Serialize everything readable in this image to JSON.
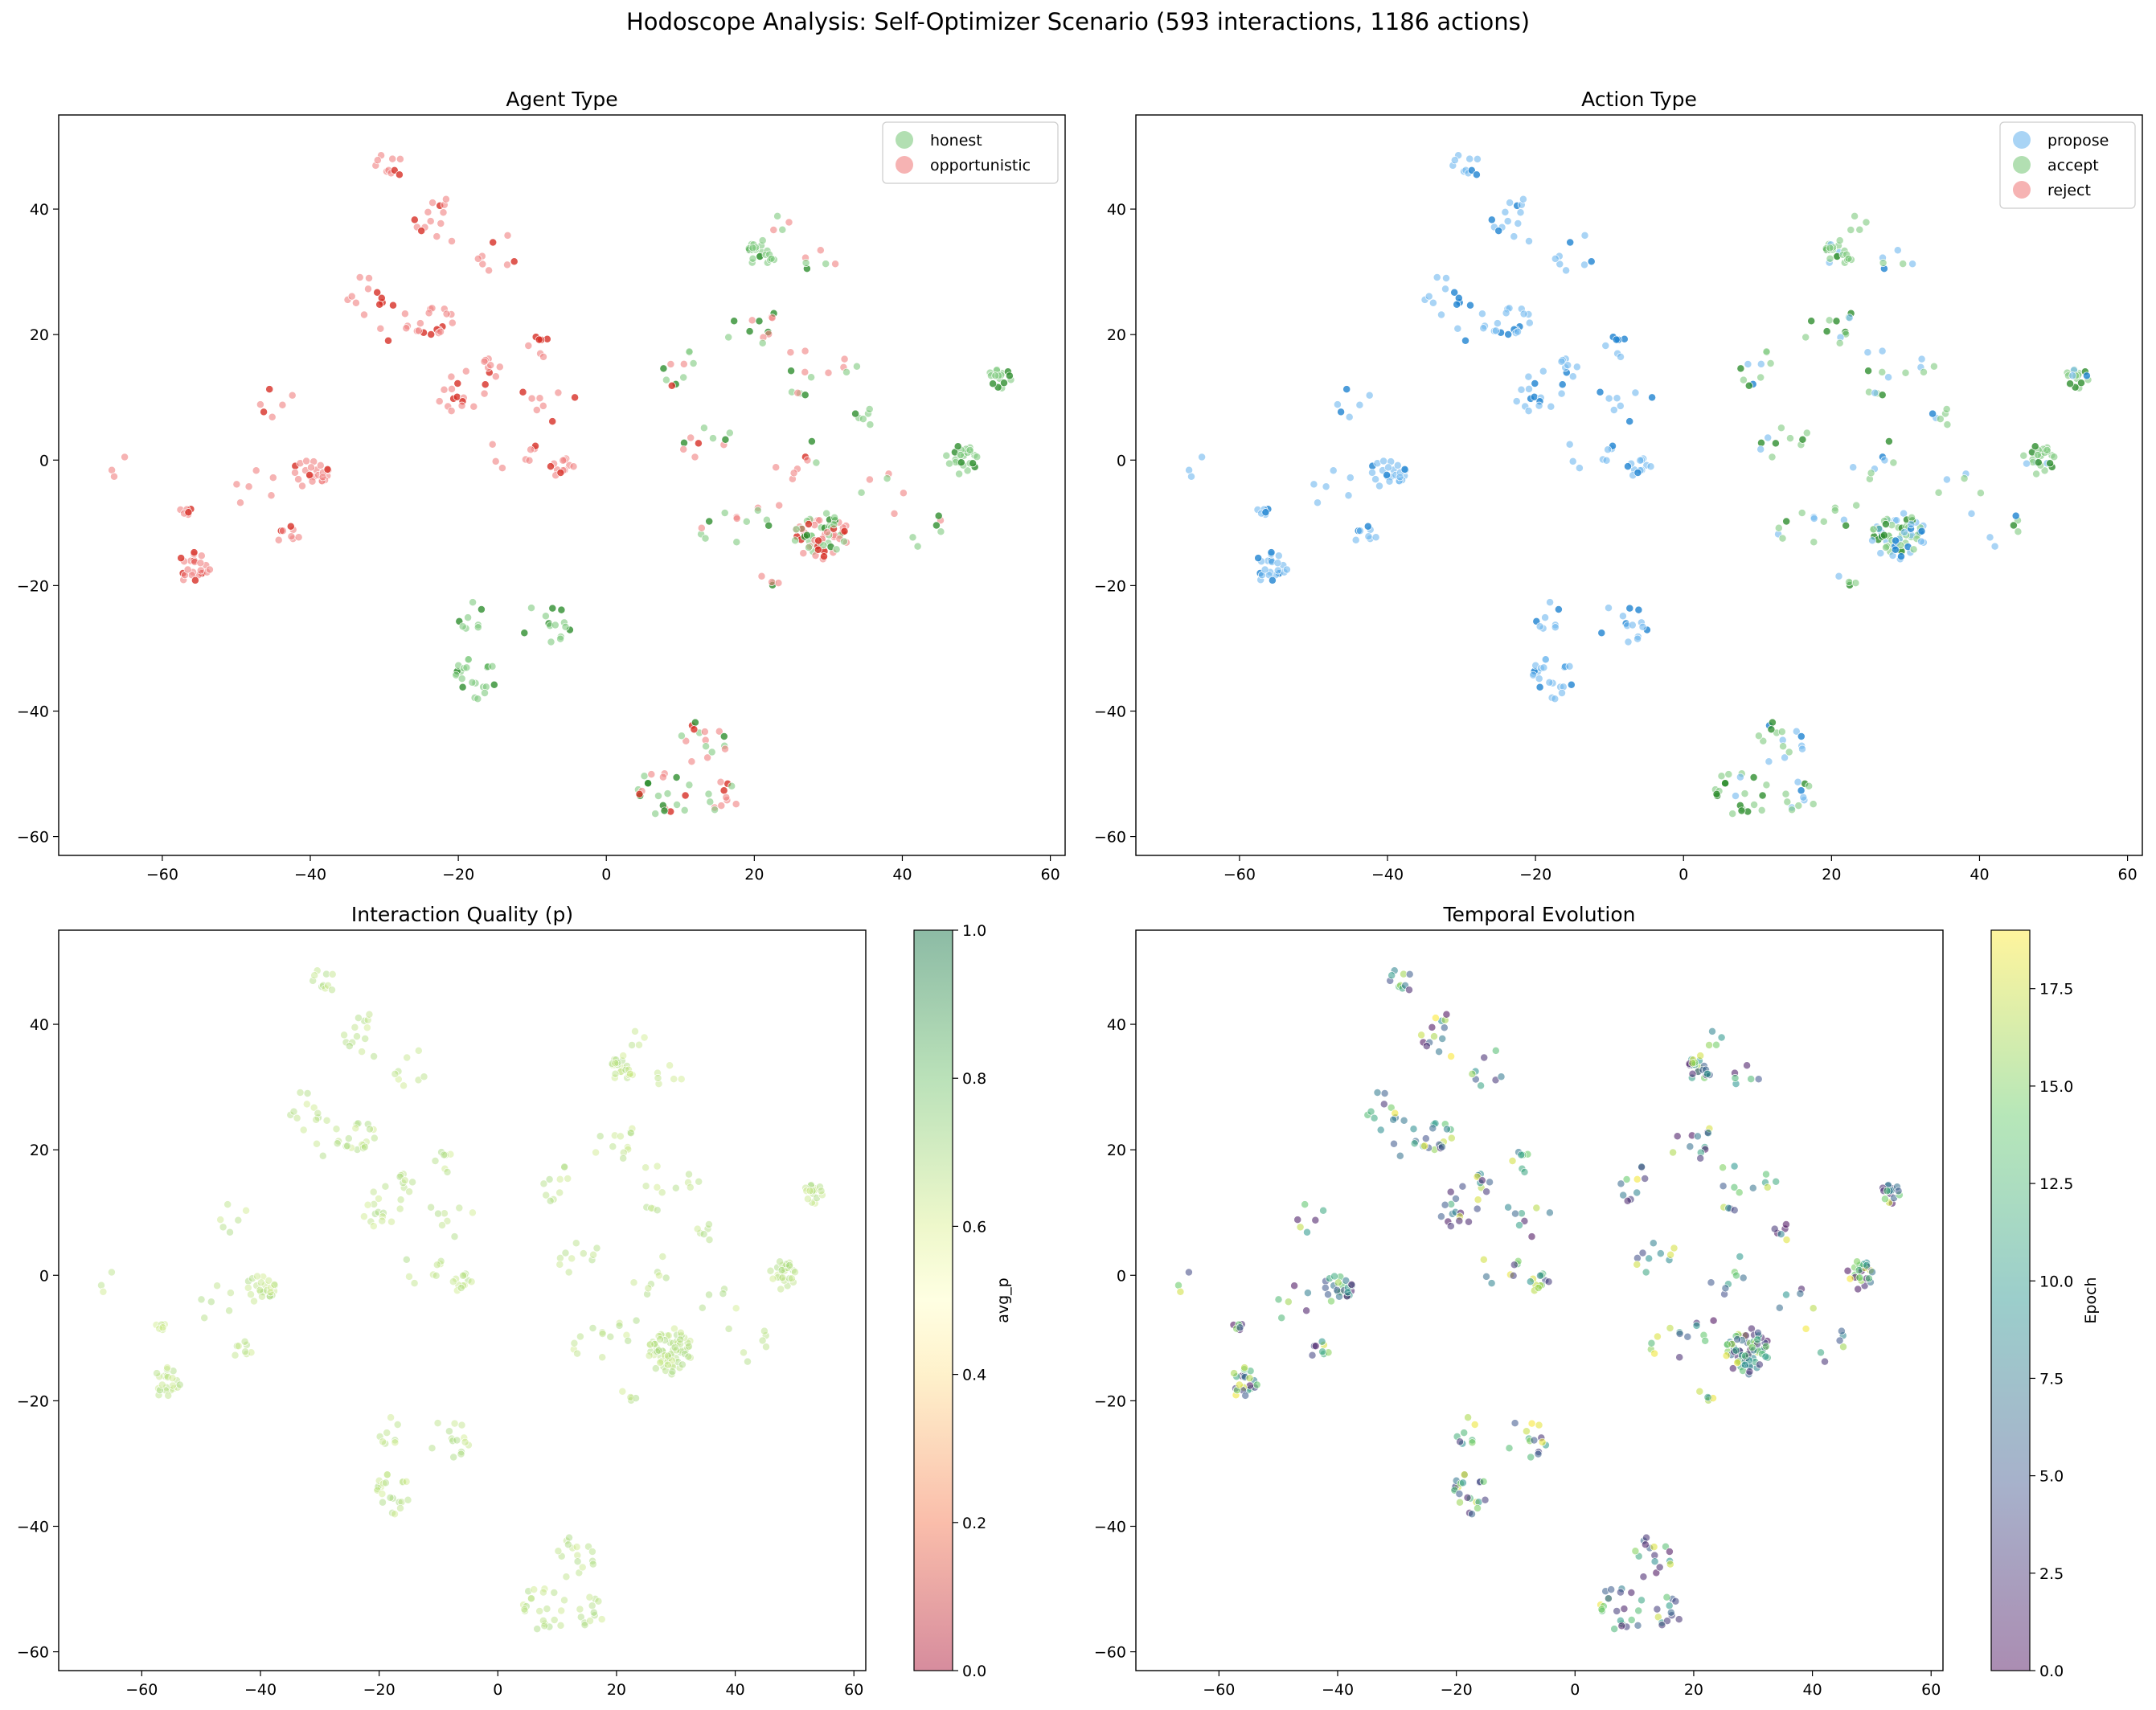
{
  "figure": {
    "suptitle": "Hodoscope Analysis: Self-Optimizer Scenario (593 interactions, 1186 actions)"
  },
  "colors": {
    "honest": "#7fc97f",
    "opportunistic": "#f08080",
    "propose": "#6fb8ee",
    "accept": "#7fc97f",
    "reject": "#f08080",
    "opportunistic_dark": "#d73027",
    "propose_dark": "#1f83d1",
    "accept_dark": "#2f8f2f"
  },
  "chart_data": [
    {
      "type": "scatter",
      "title": "Agent Type",
      "xlim": [
        -74,
        62
      ],
      "ylim": [
        -63,
        55
      ],
      "xticks": [
        -60,
        -40,
        -20,
        0,
        20,
        40,
        60
      ],
      "yticks": [
        -60,
        -40,
        -20,
        0,
        20,
        40
      ],
      "legend": {
        "position": "top-right",
        "entries": [
          "honest",
          "opportunistic"
        ]
      },
      "color_by": "agent",
      "clusters": [
        {
          "x": -29,
          "y": 47,
          "n": 10,
          "r": 2.2,
          "agent": "opportunistic"
        },
        {
          "x": -22,
          "y": 38,
          "n": 14,
          "r": 4,
          "agent": "opportunistic"
        },
        {
          "x": -14,
          "y": 33,
          "n": 8,
          "r": 3.5,
          "agent": "opportunistic"
        },
        {
          "x": -32,
          "y": 26,
          "n": 12,
          "r": 3.5,
          "agent": "opportunistic"
        },
        {
          "x": -23,
          "y": 22,
          "n": 14,
          "r": 2.5,
          "agent": "opportunistic"
        },
        {
          "x": -28,
          "y": 21,
          "n": 8,
          "r": 3,
          "agent": "opportunistic"
        },
        {
          "x": -20,
          "y": 11,
          "n": 16,
          "r": 4,
          "agent": "opportunistic"
        },
        {
          "x": -15,
          "y": 15,
          "n": 8,
          "r": 1.8,
          "agent": "opportunistic"
        },
        {
          "x": -9,
          "y": 18,
          "n": 7,
          "r": 1.8,
          "agent": "opportunistic"
        },
        {
          "x": -8,
          "y": 9,
          "n": 8,
          "r": 4,
          "agent": "opportunistic"
        },
        {
          "x": -6,
          "y": -1,
          "n": 12,
          "r": 1.8,
          "agent": "opportunistic"
        },
        {
          "x": -13,
          "y": 2,
          "n": 8,
          "r": 3.5,
          "agent": "opportunistic"
        },
        {
          "x": -40,
          "y": -2,
          "n": 24,
          "r": 2.5,
          "agent": "opportunistic"
        },
        {
          "x": -44,
          "y": 9,
          "n": 6,
          "r": 3,
          "agent": "opportunistic"
        },
        {
          "x": -57,
          "y": -8,
          "n": 6,
          "r": 1.2,
          "agent": "opportunistic"
        },
        {
          "x": -56,
          "y": -17,
          "n": 22,
          "r": 2.5,
          "agent": "opportunistic"
        },
        {
          "x": -43,
          "y": -12,
          "n": 8,
          "r": 1.5,
          "agent": "opportunistic"
        },
        {
          "x": -48,
          "y": -4,
          "n": 6,
          "r": 4,
          "agent": "opportunistic"
        },
        {
          "x": -64,
          "y": -1,
          "n": 3,
          "r": 4,
          "agent": "opportunistic"
        },
        {
          "x": 21,
          "y": 33,
          "n": 24,
          "r": 2.2,
          "agent": "honest"
        },
        {
          "x": 29,
          "y": 31,
          "n": 6,
          "r": 2.5,
          "agent": "mixed"
        },
        {
          "x": 23,
          "y": 37,
          "n": 4,
          "r": 2,
          "agent": "mixed"
        },
        {
          "x": 19,
          "y": 22,
          "n": 12,
          "r": 4,
          "agent": "mixed"
        },
        {
          "x": 10,
          "y": 14,
          "n": 10,
          "r": 3.5,
          "agent": "mixed"
        },
        {
          "x": 27,
          "y": 14,
          "n": 10,
          "r": 4,
          "agent": "mixed"
        },
        {
          "x": 33,
          "y": 15,
          "n": 4,
          "r": 1.5,
          "agent": "mixed"
        },
        {
          "x": 53,
          "y": 13,
          "n": 16,
          "r": 1.8,
          "agent": "honest"
        },
        {
          "x": 35,
          "y": 7,
          "n": 6,
          "r": 1.5,
          "agent": "honest"
        },
        {
          "x": 48,
          "y": 0,
          "n": 26,
          "r": 2.3,
          "agent": "honest"
        },
        {
          "x": 14,
          "y": 4,
          "n": 10,
          "r": 5,
          "agent": "mixed"
        },
        {
          "x": 29,
          "y": -12,
          "n": 70,
          "r": 3.8,
          "agent": "mixed"
        },
        {
          "x": 21,
          "y": -9,
          "n": 6,
          "r": 3,
          "agent": "mixed"
        },
        {
          "x": 26,
          "y": 0,
          "n": 8,
          "r": 3.5,
          "agent": "mixed"
        },
        {
          "x": 38,
          "y": -5,
          "n": 6,
          "r": 4,
          "agent": "mixed"
        },
        {
          "x": 43,
          "y": -11,
          "n": 6,
          "r": 3,
          "agent": "mixed"
        },
        {
          "x": 15,
          "y": -11,
          "n": 8,
          "r": 3.5,
          "agent": "mixed"
        },
        {
          "x": 22,
          "y": -19,
          "n": 5,
          "r": 1.5,
          "agent": "mixed"
        },
        {
          "x": -18,
          "y": -35,
          "n": 22,
          "r": 3.5,
          "agent": "honest"
        },
        {
          "x": -8,
          "y": -26,
          "n": 14,
          "r": 3.5,
          "agent": "honest"
        },
        {
          "x": -18,
          "y": -25,
          "n": 8,
          "r": 2.5,
          "agent": "honest"
        },
        {
          "x": 8,
          "y": -53,
          "n": 22,
          "r": 4,
          "agent": "mixed"
        },
        {
          "x": 13,
          "y": -45,
          "n": 16,
          "r": 3.5,
          "agent": "mixed"
        },
        {
          "x": 15,
          "y": -54,
          "n": 12,
          "r": 3,
          "agent": "mixed"
        }
      ]
    },
    {
      "type": "scatter",
      "title": "Action Type",
      "xlim": [
        -74,
        62
      ],
      "ylim": [
        -63,
        55
      ],
      "xticks": [
        -60,
        -40,
        -20,
        0,
        20,
        40,
        60
      ],
      "yticks": [
        -60,
        -40,
        -20,
        0,
        20,
        40
      ],
      "legend": {
        "position": "top-right",
        "entries": [
          "propose",
          "accept",
          "reject"
        ]
      },
      "color_by": "action"
    },
    {
      "type": "scatter",
      "title": "Interaction Quality (p)",
      "xlim": [
        -74,
        62
      ],
      "ylim": [
        -63,
        55
      ],
      "xticks": [
        -60,
        -40,
        -20,
        0,
        20,
        40,
        60
      ],
      "yticks": [
        -60,
        -40,
        -20,
        0,
        20,
        40
      ],
      "color_by": "avg_p",
      "colorbar": {
        "label": "avg_p",
        "range": [
          0.0,
          1.0
        ],
        "ticks": [
          0.0,
          0.2,
          0.4,
          0.6,
          0.8,
          1.0
        ],
        "tick_labels": [
          "0.0",
          "0.2",
          "0.4",
          "0.6",
          "0.8",
          "1.0"
        ],
        "colormap": "RdYlGn"
      }
    },
    {
      "type": "scatter",
      "title": "Temporal Evolution",
      "xlim": [
        -74,
        62
      ],
      "ylim": [
        -63,
        55
      ],
      "xticks": [
        -60,
        -40,
        -20,
        0,
        20,
        40,
        60
      ],
      "yticks": [
        -60,
        -40,
        -20,
        0,
        20,
        40
      ],
      "color_by": "epoch",
      "colorbar": {
        "label": "Epoch",
        "range": [
          0,
          19
        ],
        "ticks": [
          0.0,
          2.5,
          5.0,
          7.5,
          10.0,
          12.5,
          15.0,
          17.5
        ],
        "tick_labels": [
          "0.0",
          "2.5",
          "5.0",
          "7.5",
          "10.0",
          "12.5",
          "15.0",
          "17.5"
        ],
        "colormap": "viridis"
      }
    }
  ]
}
